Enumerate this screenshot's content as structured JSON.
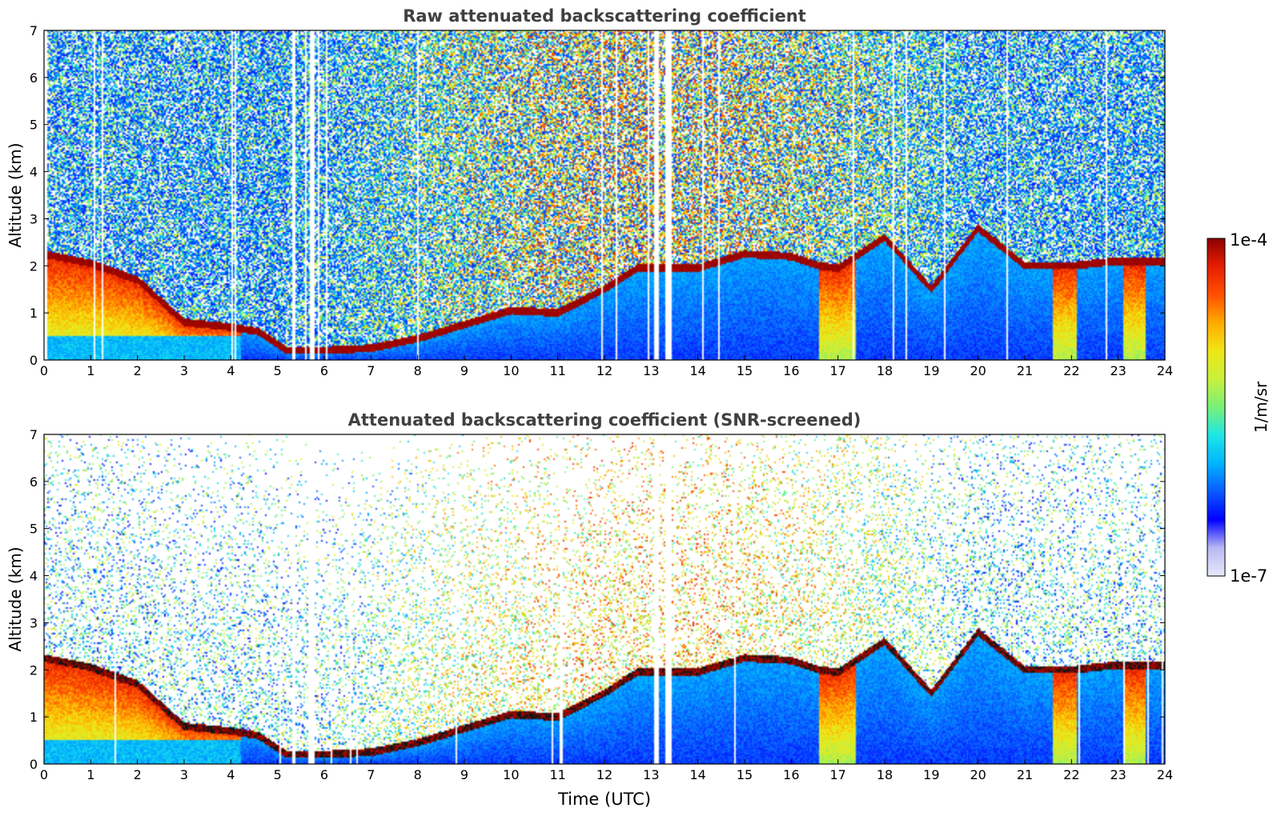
{
  "figure": {
    "colorbar": {
      "max_label": "1e-4",
      "min_label": "1e-7",
      "unit_label": "1/m/sr",
      "range": [
        1e-07,
        0.0001
      ],
      "scale": "log",
      "colormap": [
        "#e8e8fb",
        "#b8b8f4",
        "#0000ff",
        "#0a5aff",
        "#00b4ff",
        "#1ee6e6",
        "#78f078",
        "#c8f03c",
        "#f0e614",
        "#ffaa00",
        "#ff5000",
        "#e61e00",
        "#8c0000"
      ]
    },
    "xlabel": "Time (UTC)"
  },
  "chart_data": [
    {
      "type": "heatmap",
      "title": "Raw attenuated backscattering coefficient",
      "xlabel": "",
      "ylabel": "Altitude (km)",
      "xlim": [
        0,
        24
      ],
      "ylim": [
        0,
        7
      ],
      "xticks": [
        "0",
        "1",
        "2",
        "3",
        "4",
        "5",
        "6",
        "7",
        "8",
        "9",
        "10",
        "11",
        "12",
        "13",
        "14",
        "15",
        "16",
        "17",
        "18",
        "19",
        "20",
        "21",
        "22",
        "23",
        "24"
      ],
      "yticks": [
        "0",
        "1",
        "2",
        "3",
        "4",
        "5",
        "6",
        "7"
      ],
      "screened": false,
      "boundary_layer_top_km": {
        "time_h": [
          0,
          1,
          2,
          3,
          4,
          4.6,
          5.2,
          6,
          7,
          8,
          9,
          10,
          11,
          12,
          12.7,
          13,
          14,
          15,
          16,
          16.6,
          17,
          18,
          19,
          20,
          21,
          22,
          23,
          24
        ],
        "altitude_km": [
          2.25,
          2.05,
          1.7,
          0.8,
          0.7,
          0.6,
          0.2,
          0.2,
          0.25,
          0.45,
          0.75,
          1.05,
          1.0,
          1.5,
          1.95,
          1.95,
          1.95,
          2.25,
          2.2,
          2.0,
          1.95,
          2.6,
          1.5,
          2.8,
          2.0,
          2.0,
          2.1,
          2.1
        ]
      },
      "missing_data_h": [
        5.35,
        5.75,
        13.1,
        13.35
      ]
    },
    {
      "type": "heatmap",
      "title": "Attenuated backscattering coefficient (SNR-screened)",
      "xlabel": "Time (UTC)",
      "ylabel": "Altitude (km)",
      "xlim": [
        0,
        24
      ],
      "ylim": [
        0,
        7
      ],
      "xticks": [
        "0",
        "1",
        "2",
        "3",
        "4",
        "5",
        "6",
        "7",
        "8",
        "9",
        "10",
        "11",
        "12",
        "13",
        "14",
        "15",
        "16",
        "17",
        "18",
        "19",
        "20",
        "21",
        "22",
        "23",
        "24"
      ],
      "yticks": [
        "0",
        "1",
        "2",
        "3",
        "4",
        "5",
        "6",
        "7"
      ],
      "screened": true,
      "boundary_layer_top_km": {
        "time_h": [
          0,
          1,
          2,
          3,
          4,
          4.6,
          5.2,
          6,
          7,
          8,
          9,
          10,
          11,
          12,
          12.7,
          13,
          14,
          15,
          16,
          16.6,
          17,
          18,
          19,
          20,
          21,
          22,
          23,
          24
        ],
        "altitude_km": [
          2.25,
          2.05,
          1.7,
          0.8,
          0.7,
          0.6,
          0.2,
          0.2,
          0.25,
          0.45,
          0.75,
          1.05,
          1.0,
          1.5,
          1.95,
          1.95,
          1.95,
          2.25,
          2.2,
          2.0,
          1.95,
          2.6,
          1.5,
          2.8,
          2.0,
          2.0,
          2.1,
          2.1
        ]
      },
      "missing_data_h": [
        5.35,
        5.75,
        13.1,
        13.35
      ]
    }
  ]
}
